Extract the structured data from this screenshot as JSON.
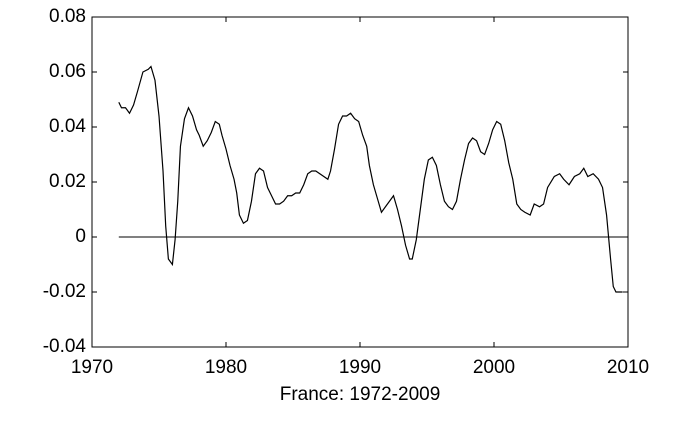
{
  "chart_data": {
    "type": "line",
    "xlabel": "France: 1972-2009",
    "x": [
      1972.0,
      1972.2,
      1972.5,
      1972.8,
      1973.1,
      1973.4,
      1973.8,
      1974.2,
      1974.4,
      1974.7,
      1975.0,
      1975.3,
      1975.5,
      1975.7,
      1976.0,
      1976.2,
      1976.4,
      1976.6,
      1976.9,
      1977.2,
      1977.5,
      1977.8,
      1978.0,
      1978.3,
      1978.6,
      1978.9,
      1979.2,
      1979.5,
      1979.7,
      1980.0,
      1980.3,
      1980.6,
      1980.8,
      1981.0,
      1981.3,
      1981.6,
      1981.9,
      1982.2,
      1982.5,
      1982.8,
      1983.1,
      1983.4,
      1983.7,
      1984.0,
      1984.3,
      1984.6,
      1984.9,
      1985.2,
      1985.5,
      1985.8,
      1986.1,
      1986.4,
      1986.7,
      1987.0,
      1987.3,
      1987.6,
      1987.8,
      1988.1,
      1988.4,
      1988.7,
      1989.0,
      1989.3,
      1989.6,
      1989.9,
      1990.2,
      1990.5,
      1990.7,
      1991.0,
      1991.3,
      1991.6,
      1991.9,
      1992.2,
      1992.5,
      1992.8,
      1993.1,
      1993.4,
      1993.7,
      1993.9,
      1994.2,
      1994.5,
      1994.8,
      1995.1,
      1995.4,
      1995.7,
      1996.0,
      1996.3,
      1996.6,
      1996.9,
      1997.2,
      1997.5,
      1997.8,
      1998.1,
      1998.4,
      1998.7,
      1999.0,
      1999.3,
      1999.6,
      1999.9,
      2000.2,
      2000.5,
      2000.8,
      2001.1,
      2001.4,
      2001.7,
      2002.0,
      2002.3,
      2002.7,
      2003.0,
      2003.4,
      2003.7,
      2004.0,
      2004.5,
      2004.9,
      2005.2,
      2005.6,
      2006.0,
      2006.4,
      2006.7,
      2007.0,
      2007.4,
      2007.8,
      2008.1,
      2008.4,
      2008.7,
      2008.9,
      2009.1,
      2009.6
    ],
    "series": [
      {
        "color": "#000000",
        "values": [
          0.049,
          0.047,
          0.047,
          0.045,
          0.048,
          0.053,
          0.06,
          0.061,
          0.062,
          0.057,
          0.044,
          0.024,
          0.004,
          -0.008,
          -0.01,
          -0.001,
          0.013,
          0.033,
          0.043,
          0.047,
          0.044,
          0.039,
          0.037,
          0.033,
          0.035,
          0.038,
          0.042,
          0.041,
          0.037,
          0.032,
          0.026,
          0.021,
          0.016,
          0.008,
          0.005,
          0.006,
          0.013,
          0.023,
          0.025,
          0.024,
          0.018,
          0.015,
          0.012,
          0.012,
          0.013,
          0.015,
          0.015,
          0.016,
          0.016,
          0.019,
          0.023,
          0.024,
          0.024,
          0.023,
          0.022,
          0.021,
          0.024,
          0.032,
          0.041,
          0.044,
          0.044,
          0.045,
          0.043,
          0.042,
          0.037,
          0.033,
          0.026,
          0.019,
          0.014,
          0.009,
          0.011,
          0.013,
          0.015,
          0.01,
          0.004,
          -0.003,
          -0.008,
          -0.008,
          -0.001,
          0.01,
          0.021,
          0.028,
          0.029,
          0.026,
          0.019,
          0.013,
          0.011,
          0.01,
          0.013,
          0.021,
          0.028,
          0.034,
          0.036,
          0.035,
          0.031,
          0.03,
          0.034,
          0.039,
          0.042,
          0.041,
          0.035,
          0.027,
          0.021,
          0.012,
          0.01,
          0.009,
          0.008,
          0.012,
          0.011,
          0.012,
          0.018,
          0.022,
          0.023,
          0.021,
          0.019,
          0.022,
          0.023,
          0.025,
          0.022,
          0.023,
          0.021,
          0.018,
          0.008,
          -0.008,
          -0.018,
          -0.02,
          -0.02
        ]
      }
    ],
    "hline": 0,
    "xlim": [
      1970,
      2010
    ],
    "xticks": [
      1970,
      1980,
      1990,
      2000,
      2010
    ],
    "ylim": [
      -0.04,
      0.08
    ],
    "yticks": [
      -0.04,
      -0.02,
      0,
      0.02,
      0.04,
      0.06,
      0.08
    ]
  }
}
